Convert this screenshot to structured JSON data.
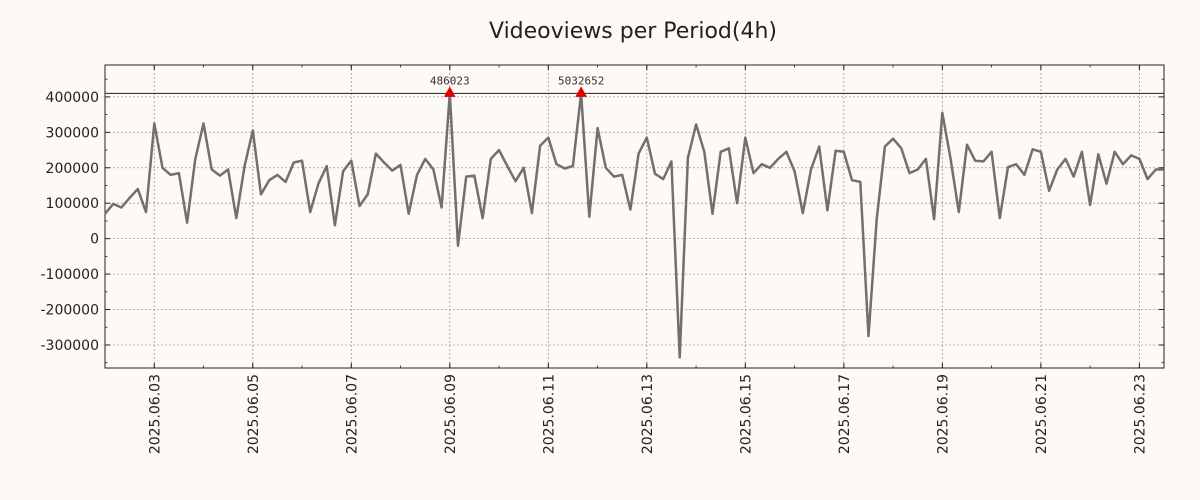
{
  "chart_data": {
    "type": "line",
    "title": "Videoviews per Period(4h)",
    "xlabel": "",
    "ylabel": "",
    "x_start": "2025-06-02T00:00",
    "x_step_hours": 4,
    "xlim": [
      "2025-06-02T00:00",
      "2025-06-23T12:00"
    ],
    "ylim": [
      -365000,
      490000
    ],
    "x_ticks": [
      "2025.06.03",
      "2025.06.05",
      "2025.06.07",
      "2025.06.09",
      "2025.06.11",
      "2025.06.13",
      "2025.06.15",
      "2025.06.17",
      "2025.06.19",
      "2025.06.21",
      "2025.06.23"
    ],
    "y_ticks": [
      400000,
      300000,
      200000,
      100000,
      0,
      -100000,
      -200000,
      -300000
    ],
    "y_tick_labels": [
      "400000",
      "300000",
      "200000",
      "100000",
      "0",
      "-100000",
      "-200000",
      "-300000"
    ],
    "grid": true,
    "line_color": "#707070",
    "reference_line": {
      "y": 410000,
      "color": "#222222"
    },
    "annotations": [
      {
        "label": "486023",
        "x": "2025-06-09T00:00",
        "y": 410000,
        "color": "#e00000"
      },
      {
        "label": "5032652",
        "x": "2025-06-11T16:00",
        "y": 410000,
        "color": "#e00000"
      }
    ],
    "series": [
      {
        "values": [
          70000,
          98000,
          88000,
          115000,
          140000,
          75000,
          325000,
          200000,
          180000,
          185000,
          45000,
          225000,
          325000,
          195000,
          178000,
          195000,
          58000,
          205000,
          305000,
          125000,
          165000,
          180000,
          160000,
          215000,
          220000,
          75000,
          155000,
          205000,
          38000,
          190000,
          220000,
          92000,
          125000,
          240000,
          215000,
          192000,
          208000,
          70000,
          180000,
          225000,
          195000,
          88000,
          410000,
          -20000,
          175000,
          178000,
          58000,
          225000,
          250000,
          205000,
          162000,
          200000,
          72000,
          262000,
          285000,
          210000,
          198000,
          205000,
          410000,
          62000,
          312000,
          200000,
          175000,
          180000,
          82000,
          240000,
          285000,
          183000,
          168000,
          218000,
          -335000,
          228000,
          322000,
          245000,
          70000,
          245000,
          255000,
          100000,
          285000,
          185000,
          210000,
          200000,
          225000,
          245000,
          190000,
          72000,
          195000,
          260000,
          80000,
          248000,
          245000,
          165000,
          160000,
          -275000,
          55000,
          260000,
          282000,
          255000,
          185000,
          195000,
          225000,
          55000,
          355000,
          225000,
          75000,
          265000,
          220000,
          218000,
          245000,
          58000,
          202000,
          210000,
          180000,
          252000,
          245000,
          135000,
          195000,
          225000,
          175000,
          245000,
          95000,
          238000,
          155000,
          245000,
          210000,
          235000,
          225000,
          168000,
          195000,
          195000
        ]
      }
    ]
  }
}
